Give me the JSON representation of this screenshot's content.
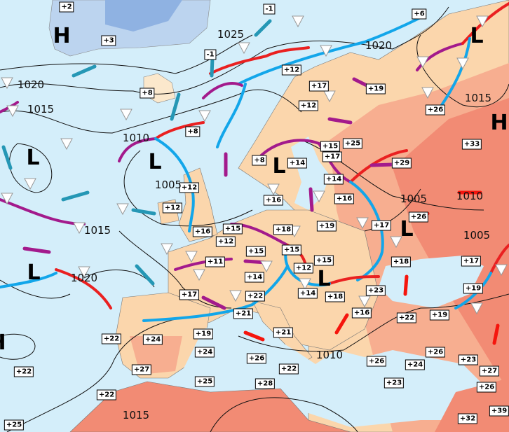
{
  "colors": {
    "sea": "#d4eefa",
    "land": "#fbd6ac",
    "warm": "#f7ae90",
    "hot": "#f28b74",
    "ice": "#bcd4ef",
    "cold_front": "#12a6ea",
    "warm_front": "#ea2020",
    "occluded_front": "#a31a8c",
    "cold_air_arrow": "#2597b5",
    "warm_air_arrow": "#f5150d"
  },
  "icons": {
    "shower": "white-triangle",
    "thunderstorm": "lightning-flag",
    "snow": "asterisk",
    "rain": "drop"
  },
  "pressure_centers": [
    "H",
    "L",
    "L",
    "L",
    "L",
    "H",
    "L",
    "L",
    "L",
    "H"
  ],
  "isobar_labels": [
    "1025",
    "1020",
    "1020",
    "1015",
    "1010",
    "1005",
    "1015",
    "1020",
    "1015",
    "1005",
    "1010",
    "1005",
    "1010",
    "1015"
  ],
  "temperatures": [
    "+2",
    "+3",
    "-1",
    "-1",
    "+6",
    "+12",
    "+8",
    "+8",
    "+17",
    "+12",
    "+19",
    "+26",
    "+33",
    "+25",
    "+15",
    "+17",
    "+8",
    "+14",
    "+14",
    "+29",
    "+16",
    "+16",
    "+12",
    "+12",
    "+16",
    "+15",
    "+12",
    "+18",
    "+19",
    "+17",
    "+26",
    "+15",
    "+15",
    "+11",
    "+14",
    "+12",
    "+15",
    "+18",
    "+17",
    "+22",
    "+17",
    "+14",
    "+18",
    "+23",
    "+19",
    "+21",
    "+22",
    "+19",
    "+16",
    "+21",
    "+22",
    "+24",
    "+19",
    "+24",
    "+26",
    "+22",
    "+27",
    "+22",
    "+26",
    "+24",
    "+26",
    "+23",
    "+27",
    "+22",
    "+25",
    "+28",
    "+23",
    "+26",
    "+25",
    "+32",
    "+39"
  ]
}
